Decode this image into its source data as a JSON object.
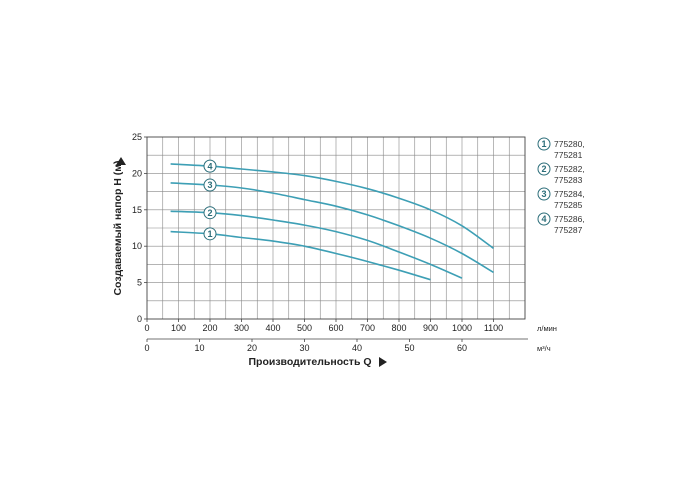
{
  "chart_data": {
    "type": "line",
    "xlabel": "Производительность Q",
    "ylabel": "Создаваемый напор H (м)",
    "x_unit": "л/мин",
    "x2_unit": "м³/ч",
    "xlim": [
      0,
      1200
    ],
    "ylim": [
      0,
      25
    ],
    "x_ticks": [
      0,
      100,
      200,
      300,
      400,
      500,
      600,
      700,
      800,
      900,
      1000,
      1100
    ],
    "x2_ticks": [
      0,
      10,
      20,
      30,
      40,
      50,
      60
    ],
    "y_ticks": [
      0,
      5,
      10,
      15,
      20,
      25
    ],
    "grid": true,
    "colors": {
      "curve": "#3d9fb5",
      "grid": "#888888",
      "marker_border": "#2c6e7a"
    },
    "series": [
      {
        "name": "1",
        "codes": [
          "775280,",
          "775281"
        ],
        "marker_x": 200,
        "points": [
          [
            75,
            12.0
          ],
          [
            200,
            11.7
          ],
          [
            300,
            11.2
          ],
          [
            400,
            10.7
          ],
          [
            500,
            10.0
          ],
          [
            600,
            9.0
          ],
          [
            700,
            7.9
          ],
          [
            800,
            6.7
          ],
          [
            900,
            5.4
          ]
        ]
      },
      {
        "name": "2",
        "codes": [
          "775282,",
          "775283"
        ],
        "marker_x": 200,
        "points": [
          [
            75,
            14.8
          ],
          [
            200,
            14.6
          ],
          [
            300,
            14.2
          ],
          [
            400,
            13.6
          ],
          [
            500,
            12.9
          ],
          [
            600,
            12.0
          ],
          [
            700,
            10.8
          ],
          [
            800,
            9.2
          ],
          [
            900,
            7.5
          ],
          [
            1000,
            5.6
          ]
        ]
      },
      {
        "name": "3",
        "codes": [
          "775284,",
          "775285"
        ],
        "marker_x": 200,
        "points": [
          [
            75,
            18.7
          ],
          [
            200,
            18.4
          ],
          [
            300,
            18.0
          ],
          [
            400,
            17.3
          ],
          [
            500,
            16.4
          ],
          [
            600,
            15.5
          ],
          [
            700,
            14.3
          ],
          [
            800,
            12.8
          ],
          [
            900,
            11.1
          ],
          [
            1000,
            9.0
          ],
          [
            1100,
            6.4
          ]
        ]
      },
      {
        "name": "4",
        "codes": [
          "775286,",
          "775287"
        ],
        "marker_x": 200,
        "points": [
          [
            75,
            21.3
          ],
          [
            200,
            21.0
          ],
          [
            300,
            20.6
          ],
          [
            400,
            20.2
          ],
          [
            500,
            19.7
          ],
          [
            600,
            18.9
          ],
          [
            700,
            17.9
          ],
          [
            800,
            16.6
          ],
          [
            900,
            15.0
          ],
          [
            1000,
            12.8
          ],
          [
            1100,
            9.7
          ]
        ]
      }
    ]
  }
}
